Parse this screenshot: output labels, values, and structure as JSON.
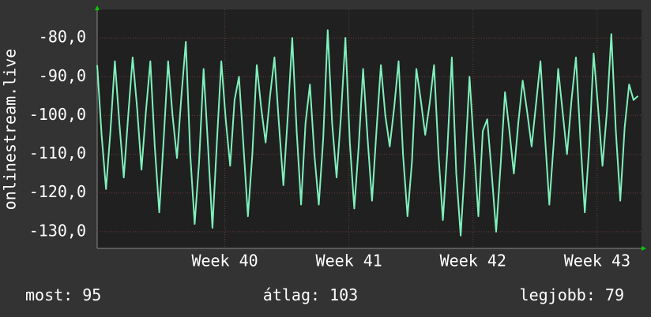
{
  "chart_data": {
    "type": "line",
    "y_label": "onlinestream.live",
    "x": [
      0,
      0.25,
      0.5,
      0.75,
      1,
      1.25,
      1.5,
      1.75,
      2,
      2.25,
      2.5,
      2.75,
      3,
      3.25,
      3.5,
      3.75,
      4,
      4.25,
      4.5,
      4.75,
      5,
      5.25,
      5.5,
      5.75,
      6,
      6.25,
      6.5,
      6.75,
      7,
      7.25,
      7.5,
      7.75,
      8,
      8.25,
      8.5,
      8.75,
      9,
      9.25,
      9.5,
      9.75,
      10,
      10.25,
      10.5,
      10.75,
      11,
      11.25,
      11.5,
      11.75,
      12,
      12.25,
      12.5,
      12.75,
      13,
      13.25,
      13.5,
      13.75,
      14,
      14.25,
      14.5,
      14.75,
      15,
      15.25,
      15.5,
      15.75,
      16,
      16.25,
      16.5,
      16.75,
      17,
      17.25,
      17.5,
      17.75,
      18,
      18.25,
      18.5,
      18.75,
      19,
      19.25,
      19.5,
      19.75,
      20,
      20.25,
      20.5,
      20.75,
      21,
      21.25,
      21.5,
      21.75,
      22,
      22.25,
      22.5,
      22.75,
      23,
      23.25,
      23.5,
      23.75,
      24,
      24.25,
      24.5,
      24.75,
      25,
      25.25,
      25.5,
      25.75,
      26,
      26.25,
      26.5,
      26.75,
      27,
      27.25,
      27.5,
      27.75,
      28,
      28.25,
      28.5,
      28.75,
      29,
      29.25,
      29.5,
      29.75,
      30,
      30.25,
      30.5
    ],
    "series": [
      {
        "name": "onlinestream.live",
        "color": "#7ff0bc",
        "values": [
          -87,
          -105,
          -119,
          -104,
          -86,
          -102,
          -116,
          -100,
          -85,
          -98,
          -114,
          -99,
          -86,
          -108,
          -125,
          -106,
          -86,
          -100,
          -111,
          -95,
          -81,
          -110,
          -128,
          -112,
          -88,
          -108,
          -129,
          -107,
          -86,
          -101,
          -113,
          -96,
          -90,
          -108,
          -126,
          -110,
          -87,
          -98,
          -107,
          -95,
          -85,
          -102,
          -118,
          -100,
          -80,
          -104,
          -123,
          -102,
          -92,
          -110,
          -123,
          -106,
          -78,
          -102,
          -116,
          -100,
          -80,
          -107,
          -124,
          -108,
          -88,
          -106,
          -122,
          -104,
          -87,
          -100,
          -108,
          -98,
          -86,
          -110,
          -126,
          -112,
          -88,
          -96,
          -105,
          -97,
          -87,
          -110,
          -127,
          -109,
          -85,
          -115,
          -131,
          -112,
          -90,
          -108,
          -126,
          -104,
          -101,
          -115,
          -130,
          -113,
          -94,
          -104,
          -115,
          -102,
          -91,
          -99,
          -108,
          -97,
          -86,
          -105,
          -123,
          -107,
          -88,
          -99,
          -110,
          -96,
          -85,
          -106,
          -125,
          -108,
          -84,
          -98,
          -113,
          -99,
          -79,
          -104,
          -122,
          -103,
          -92,
          -96,
          -95
        ]
      }
    ],
    "xlim": [
      0,
      30.7
    ],
    "xticks": [
      {
        "value": 7.2,
        "label": "Week 40"
      },
      {
        "value": 14.2,
        "label": "Week 41"
      },
      {
        "value": 21.2,
        "label": "Week 42"
      },
      {
        "value": 28.2,
        "label": "Week 43"
      }
    ],
    "ylim": [
      -134.3,
      -72.65
    ],
    "yticks": [
      {
        "value": -80,
        "label": "-80,0"
      },
      {
        "value": -90,
        "label": "-90,0"
      },
      {
        "value": -100,
        "label": "-100,0"
      },
      {
        "value": -110,
        "label": "-110,0"
      },
      {
        "value": -120,
        "label": "-120,0"
      },
      {
        "value": -130,
        "label": "-130,0"
      }
    ],
    "grid": true,
    "stats": [
      {
        "label": "most:",
        "value": 95
      },
      {
        "label": "átlag:",
        "value": 103
      },
      {
        "label": "legjobb:",
        "value": 79
      }
    ]
  }
}
